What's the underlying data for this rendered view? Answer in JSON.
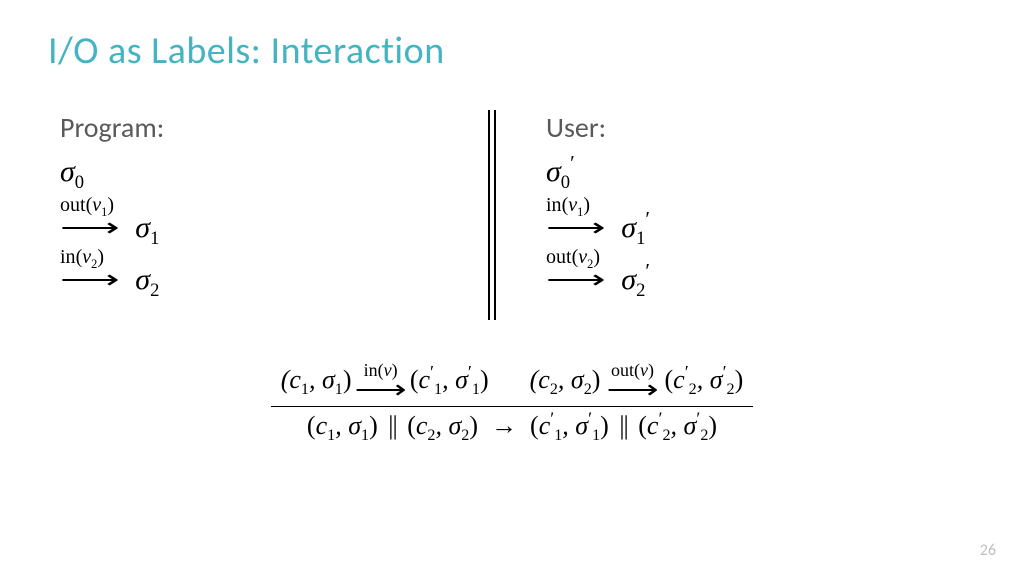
{
  "title": {
    "text": "I/O as Labels: Interaction",
    "color": "#44b3c2",
    "fontsize": 38
  },
  "program": {
    "header": "Program:",
    "sigma0": "σ",
    "transitions": [
      {
        "op": "out",
        "var": "v",
        "var_sub": "1",
        "target": "σ",
        "target_sub": "1",
        "prime": false
      },
      {
        "op": "in",
        "var": "v",
        "var_sub": "2",
        "target": "σ",
        "target_sub": "2",
        "prime": false
      }
    ]
  },
  "user": {
    "header": "User:",
    "sigma0": "σ",
    "transitions": [
      {
        "op": "in",
        "var": "v",
        "var_sub": "1",
        "target": "σ",
        "target_sub": "1",
        "prime": true
      },
      {
        "op": "out",
        "var": "v",
        "var_sub": "2",
        "target": "σ",
        "target_sub": "2",
        "prime": true
      }
    ]
  },
  "rule": {
    "top_left": {
      "pair1": "(c₁, σ₁)",
      "label_op": "in",
      "label_var": "v",
      "pair2": "(c′₁, σ′₁)"
    },
    "top_right": {
      "pair1": "(c₂, σ₂)",
      "label_op": "out",
      "label_var": "v",
      "pair2": "(c′₂, σ′₂)"
    },
    "bottom": "(c₁, σ₁) || (c₂, σ₂) → (c′₁, σ′₁) || (c′₂, σ′₂)"
  },
  "page_number": "26",
  "colors": {
    "title": "#44b3c2",
    "body": "#595959",
    "page_num": "#bfbfbf",
    "math": "#000000"
  }
}
